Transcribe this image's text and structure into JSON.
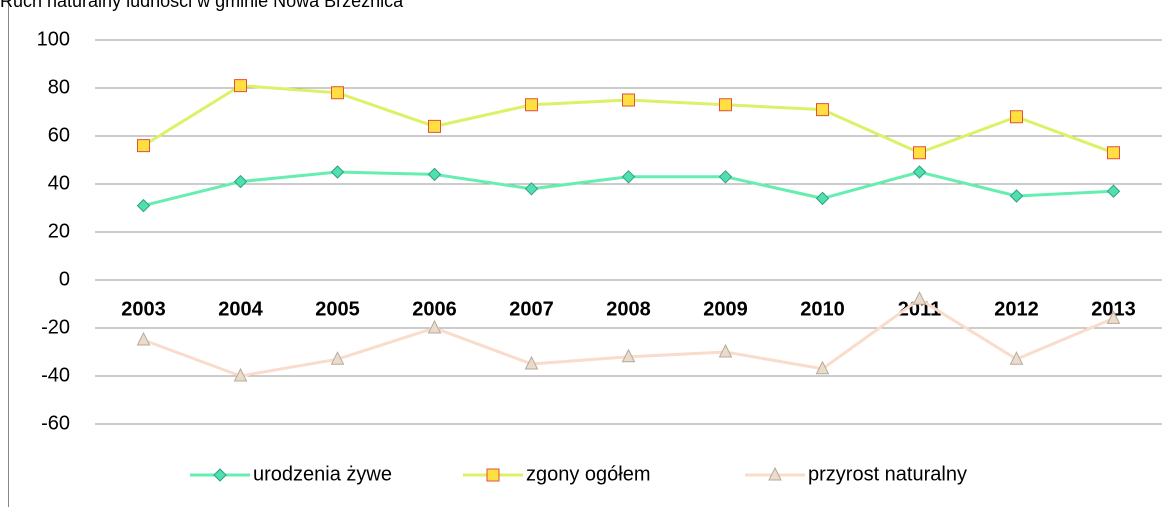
{
  "chart_data": {
    "type": "line",
    "title": "Ruch naturalny ludności w gminie Nowa Brzeźnica",
    "categories": [
      "2003",
      "2004",
      "2005",
      "2006",
      "2007",
      "2008",
      "2009",
      "2010",
      "2011",
      "2012",
      "2013"
    ],
    "series": [
      {
        "name": "urodzenia żywe",
        "color": "#66eeb0",
        "marker": "diamond",
        "values": [
          31,
          41,
          45,
          44,
          38,
          43,
          43,
          34,
          45,
          35,
          37
        ]
      },
      {
        "name": "zgony ogółem",
        "color": "#ddf066",
        "marker": "square",
        "values": [
          56,
          81,
          78,
          64,
          73,
          75,
          73,
          71,
          53,
          68,
          53
        ]
      },
      {
        "name": "przyrost naturalny",
        "color": "#f9dccb",
        "marker": "triangle",
        "values": [
          -25,
          -40,
          -33,
          -20,
          -35,
          -32,
          -30,
          -37,
          -8,
          -33,
          -16
        ]
      }
    ],
    "ylim": [
      -60,
      100
    ],
    "yticks": [
      -60,
      -40,
      -20,
      0,
      20,
      40,
      60,
      80,
      100
    ],
    "grid": true,
    "legend": "bottom"
  }
}
